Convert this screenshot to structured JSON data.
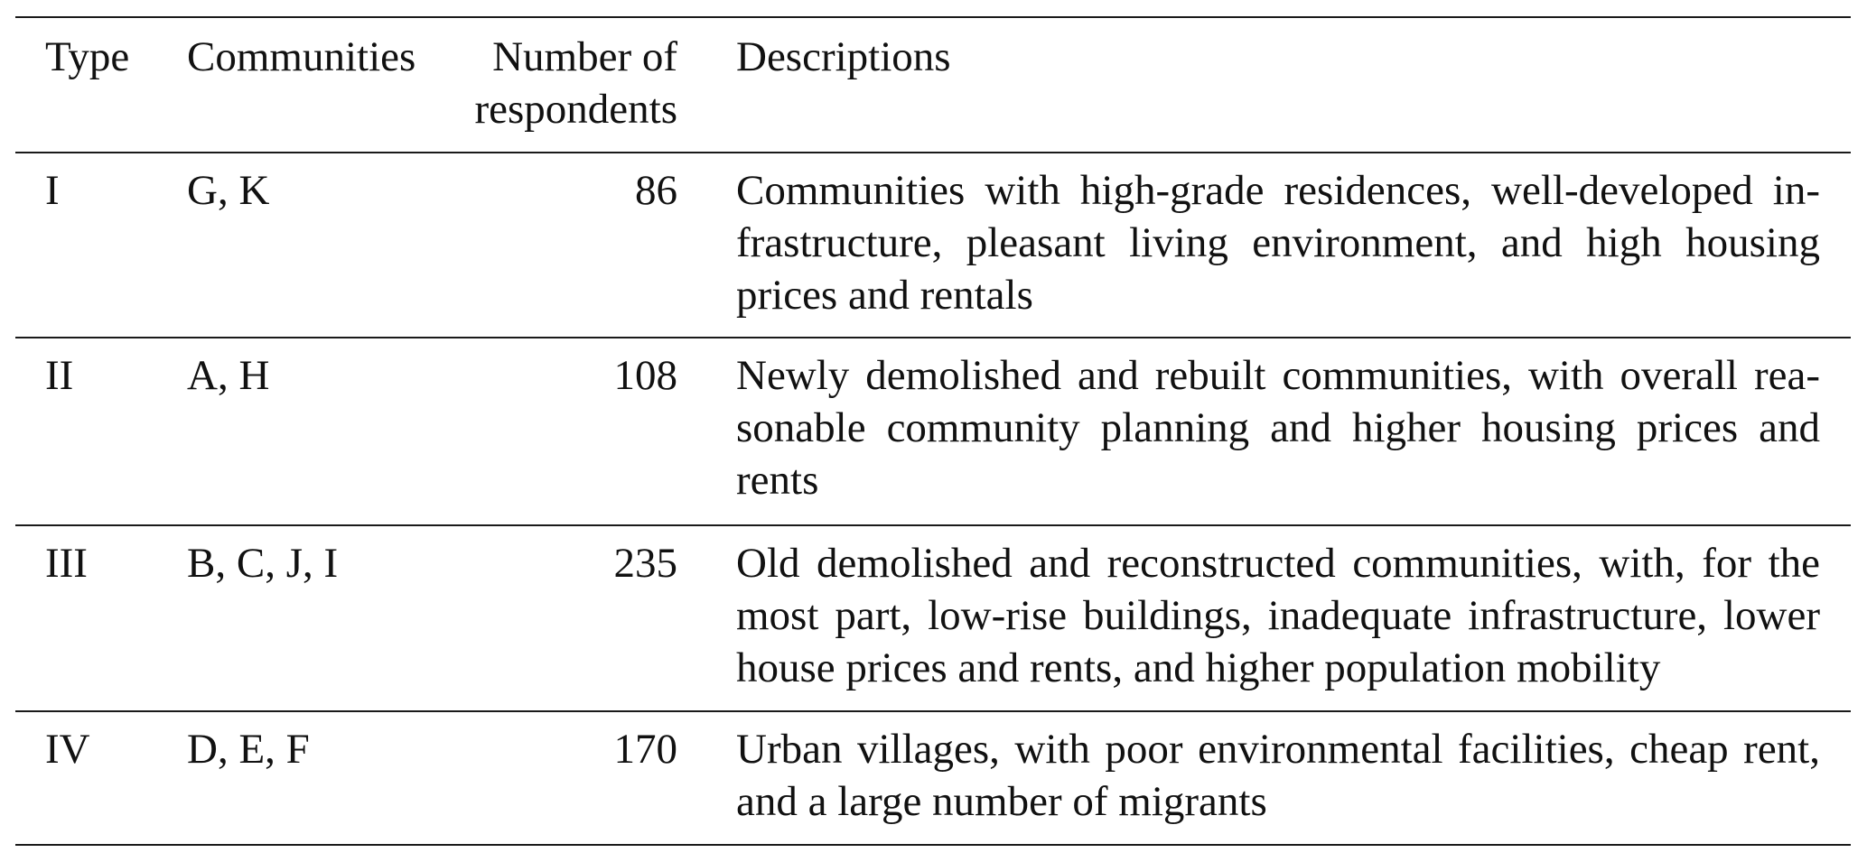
{
  "table": {
    "headers": {
      "type": "Type",
      "communities": "Communities",
      "respondents": "Number of respondents",
      "descriptions": "Descriptions"
    },
    "rows": [
      {
        "type": "I",
        "communities": "G, K",
        "respondents": "86",
        "description": "Communities with high-grade residences, well-developed in­frastructure, pleasant living environment, and high housing prices and rentals"
      },
      {
        "type": "II",
        "communities": "A, H",
        "respondents": "108",
        "description": "Newly demolished and rebuilt communities, with overall rea­sonable community planning and higher housing prices and rents"
      },
      {
        "type": "III",
        "communities": "B, C, J, I",
        "respondents": "235",
        "description": "Old demolished and reconstructed communities, with, for the most part, low-rise buildings, inadequate infrastructure, lower house prices and rents, and higher population mobility"
      },
      {
        "type": "IV",
        "communities": "D, E, F",
        "respondents": "170",
        "description": "Urban villages, with poor environmental facilities, cheap rent, and a large number of migrants"
      }
    ]
  },
  "chart_data": {
    "type": "table",
    "columns": [
      "Type",
      "Communities",
      "Number of respondents",
      "Descriptions"
    ],
    "rows": [
      [
        "I",
        "G, K",
        86,
        "Communities with high-grade residences, well-developed infrastructure, pleasant living environment, and high housing prices and rentals"
      ],
      [
        "II",
        "A, H",
        108,
        "Newly demolished and rebuilt communities, with overall reasonable community planning and higher housing prices and rents"
      ],
      [
        "III",
        "B, C, J, I",
        235,
        "Old demolished and reconstructed communities, with, for the most part, low-rise buildings, inadequate infrastructure, lower house prices and rents, and higher population mobility"
      ],
      [
        "IV",
        "D, E, F",
        170,
        "Urban villages, with poor environmental facilities, cheap rent, and a large number of migrants"
      ]
    ]
  }
}
